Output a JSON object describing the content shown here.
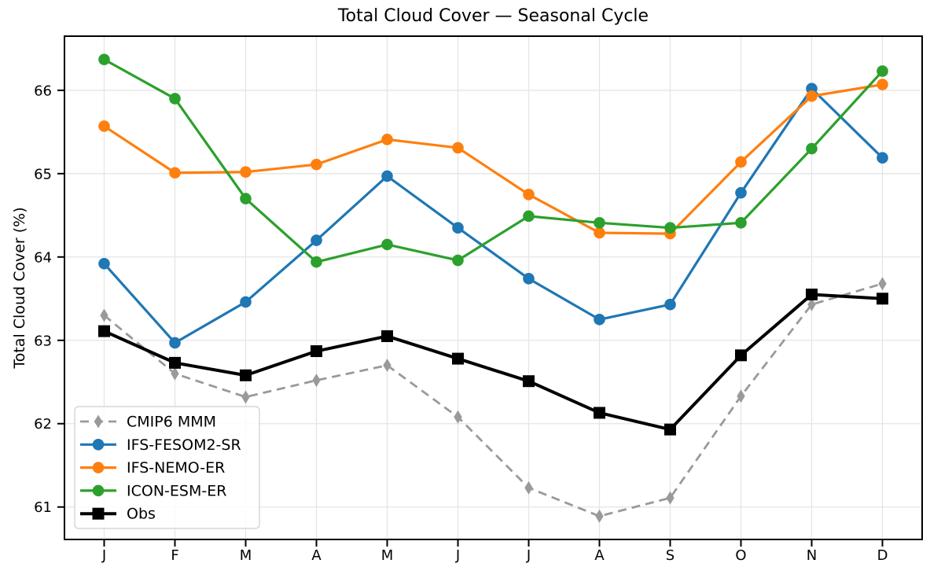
{
  "chart_data": {
    "type": "line",
    "title": "Total Cloud Cover — Seasonal Cycle",
    "ylabel": "Total Cloud Cover (%)",
    "xlabel": "",
    "categories": [
      "J",
      "F",
      "M",
      "A",
      "M",
      "J",
      "J",
      "A",
      "S",
      "O",
      "N",
      "D"
    ],
    "yticks": [
      61,
      62,
      63,
      64,
      65,
      66
    ],
    "ylim": [
      60.62,
      66.64
    ],
    "xlim": [
      -0.55,
      11.55
    ],
    "grid": true,
    "grid_color": "#e5e5e5",
    "legend_position": "lower-left",
    "series": [
      {
        "name": "CMIP6 MMM",
        "color": "#9a9a9a",
        "line_style": "dashed",
        "marker": "thin-diamond",
        "line_width": 2.8,
        "values": [
          63.3,
          62.6,
          62.32,
          62.52,
          62.7,
          62.08,
          61.23,
          60.89,
          61.11,
          62.33,
          63.43,
          63.68
        ]
      },
      {
        "name": "IFS-FESOM2-SR",
        "color": "#1f77b4",
        "line_style": "solid",
        "marker": "circle",
        "line_width": 3.2,
        "values": [
          63.92,
          62.97,
          63.46,
          64.2,
          64.97,
          64.35,
          63.74,
          63.25,
          63.43,
          64.77,
          66.02,
          65.19
        ]
      },
      {
        "name": "IFS-NEMO-ER",
        "color": "#ff7f0e",
        "line_style": "solid",
        "marker": "circle",
        "line_width": 3.2,
        "values": [
          65.57,
          65.01,
          65.02,
          65.11,
          65.41,
          65.31,
          64.75,
          64.29,
          64.28,
          65.14,
          65.93,
          66.07
        ]
      },
      {
        "name": "ICON-ESM-ER",
        "color": "#2ca02c",
        "line_style": "solid",
        "marker": "circle",
        "line_width": 3.2,
        "values": [
          66.37,
          65.9,
          64.7,
          63.94,
          64.15,
          63.96,
          64.49,
          64.41,
          64.35,
          64.41,
          65.3,
          66.23
        ]
      },
      {
        "name": "Obs",
        "color": "#000000",
        "line_style": "solid",
        "marker": "square",
        "line_width": 4,
        "values": [
          63.11,
          62.73,
          62.58,
          62.87,
          63.05,
          62.78,
          62.51,
          62.13,
          61.93,
          62.82,
          63.55,
          63.5
        ]
      }
    ]
  }
}
